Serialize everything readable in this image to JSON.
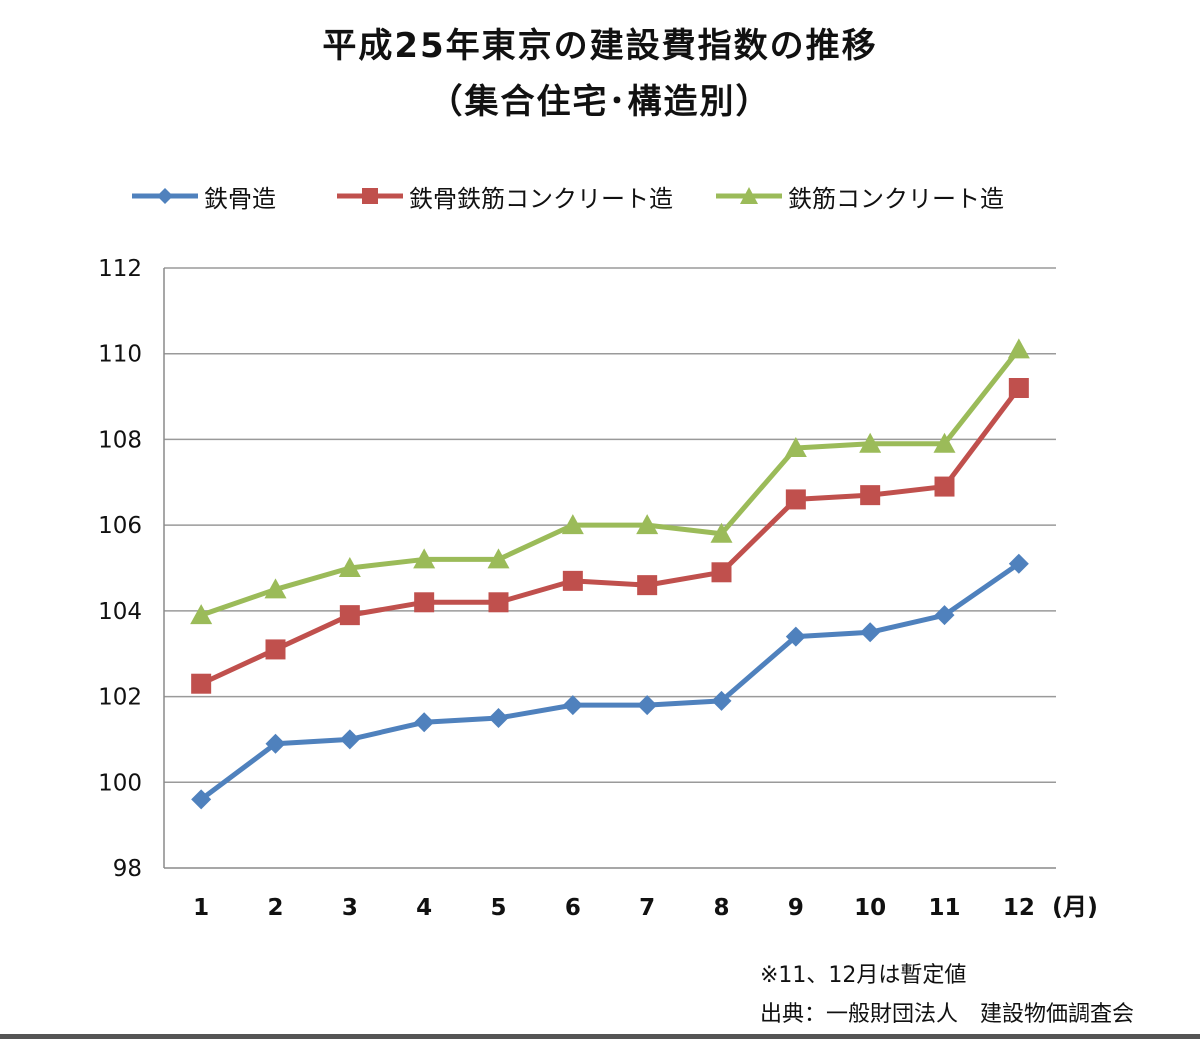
{
  "title_line1": "平成25年東京の建設費指数の推移",
  "title_line2": "（集合住宅･構造別）",
  "legend": [
    {
      "label": "鉄骨造",
      "color": "#4f81bd",
      "marker": "diamond"
    },
    {
      "label": "鉄骨鉄筋コンクリート造",
      "color": "#c0504d",
      "marker": "square"
    },
    {
      "label": "鉄筋コンクリート造",
      "color": "#9bbb59",
      "marker": "triangle"
    }
  ],
  "notes": {
    "provisional": "※11、12月は暫定値",
    "source": "出典：一般財団法人　建設物価調査会"
  },
  "chart_data": {
    "type": "line",
    "x": [
      "1",
      "2",
      "3",
      "4",
      "5",
      "6",
      "7",
      "8",
      "9",
      "10",
      "11",
      "12"
    ],
    "xunit": "(月)",
    "ylim": [
      98,
      112
    ],
    "yticks": [
      98,
      100,
      102,
      104,
      106,
      108,
      110,
      112
    ],
    "grid": true,
    "legend_position": "top",
    "series": [
      {
        "name": "鉄骨造",
        "color": "#4f81bd",
        "marker": "diamond",
        "values": [
          99.6,
          100.9,
          101.0,
          101.4,
          101.5,
          101.8,
          101.8,
          101.9,
          103.4,
          103.5,
          103.9,
          105.1
        ]
      },
      {
        "name": "鉄骨鉄筋コンクリート造",
        "color": "#c0504d",
        "marker": "square",
        "values": [
          102.3,
          103.1,
          103.9,
          104.2,
          104.2,
          104.7,
          104.6,
          104.9,
          106.6,
          106.7,
          106.9,
          109.2
        ]
      },
      {
        "name": "鉄筋コンクリート造",
        "color": "#9bbb59",
        "marker": "triangle",
        "values": [
          103.9,
          104.5,
          105.0,
          105.2,
          105.2,
          106.0,
          106.0,
          105.8,
          107.8,
          107.9,
          107.9,
          110.1
        ]
      }
    ]
  }
}
